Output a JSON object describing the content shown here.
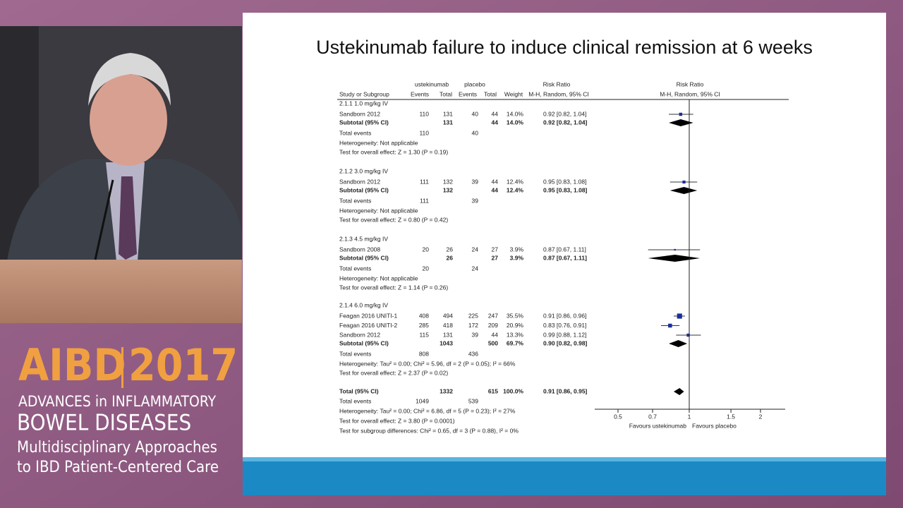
{
  "slide": {
    "title": "Ustekinumab failure to induce clinical remission at 6 weeks",
    "headers": {
      "group1": "ustekinumab",
      "group2": "placebo",
      "rr1": "Risk Ratio",
      "study": "Study or Subgroup",
      "events1": "Events",
      "total1": "Total",
      "events2": "Events",
      "total2": "Total",
      "weight": "Weight",
      "method1": "M-H, Random, 95% CI",
      "rr2": "Risk Ratio",
      "method2": "M-H, Random, 95% CI"
    },
    "groups": [
      {
        "label": "2.1.1 1.0 mg/kg IV",
        "studies": [
          {
            "name": "Sandborn 2012",
            "e1": 110,
            "n1": 131,
            "e2": 40,
            "n2": 44,
            "weight": 14.0,
            "weight_label": "14.0%",
            "rr": 0.92,
            "lo": 0.82,
            "hi": 1.04,
            "ci_label": "0.92 [0.82, 1.04]"
          }
        ],
        "subtotal": {
          "name": "Subtotal (95% CI)",
          "n1": 131,
          "n2": 44,
          "weight": 14.0,
          "weight_label": "14.0%",
          "rr": 0.92,
          "lo": 0.82,
          "hi": 1.04,
          "ci_label": "0.92 [0.82, 1.04]"
        },
        "total_events": {
          "label": "Total events",
          "e1": 110,
          "e2": 40
        },
        "heterogeneity": "Heterogeneity: Not applicable",
        "overall": "Test for overall effect: Z = 1.30 (P = 0.19)"
      },
      {
        "label": "2.1.2 3.0 mg/kg IV",
        "studies": [
          {
            "name": "Sandborn 2012",
            "e1": 111,
            "n1": 132,
            "e2": 39,
            "n2": 44,
            "weight": 12.4,
            "weight_label": "12.4%",
            "rr": 0.95,
            "lo": 0.83,
            "hi": 1.08,
            "ci_label": "0.95 [0.83, 1.08]"
          }
        ],
        "subtotal": {
          "name": "Subtotal (95% CI)",
          "n1": 132,
          "n2": 44,
          "weight": 12.4,
          "weight_label": "12.4%",
          "rr": 0.95,
          "lo": 0.83,
          "hi": 1.08,
          "ci_label": "0.95 [0.83, 1.08]"
        },
        "total_events": {
          "label": "Total events",
          "e1": 111,
          "e2": 39
        },
        "heterogeneity": "Heterogeneity: Not applicable",
        "overall": "Test for overall effect: Z = 0.80 (P = 0.42)"
      },
      {
        "label": "2.1.3 4.5 mg/kg IV",
        "studies": [
          {
            "name": "Sandborn 2008",
            "e1": 20,
            "n1": 26,
            "e2": 24,
            "n2": 27,
            "weight": 3.9,
            "weight_label": "3.9%",
            "rr": 0.87,
            "lo": 0.67,
            "hi": 1.11,
            "ci_label": "0.87 [0.67, 1.11]"
          }
        ],
        "subtotal": {
          "name": "Subtotal (95% CI)",
          "n1": 26,
          "n2": 27,
          "weight": 3.9,
          "weight_label": "3.9%",
          "rr": 0.87,
          "lo": 0.67,
          "hi": 1.11,
          "ci_label": "0.87 [0.67, 1.11]"
        },
        "total_events": {
          "label": "Total events",
          "e1": 20,
          "e2": 24
        },
        "heterogeneity": "Heterogeneity: Not applicable",
        "overall": "Test for overall effect: Z = 1.14 (P = 0.26)"
      },
      {
        "label": "2.1.4 6.0 mg/kg IV",
        "studies": [
          {
            "name": "Feagan 2016 UNITI-1",
            "e1": 408,
            "n1": 494,
            "e2": 225,
            "n2": 247,
            "weight": 35.5,
            "weight_label": "35.5%",
            "rr": 0.91,
            "lo": 0.86,
            "hi": 0.96,
            "ci_label": "0.91 [0.86, 0.96]"
          },
          {
            "name": "Feagan 2016 UNITI-2",
            "e1": 285,
            "n1": 418,
            "e2": 172,
            "n2": 209,
            "weight": 20.9,
            "weight_label": "20.9%",
            "rr": 0.83,
            "lo": 0.76,
            "hi": 0.91,
            "ci_label": "0.83 [0.76, 0.91]"
          },
          {
            "name": "Sandborn 2012",
            "e1": 115,
            "n1": 131,
            "e2": 39,
            "n2": 44,
            "weight": 13.3,
            "weight_label": "13.3%",
            "rr": 0.99,
            "lo": 0.88,
            "hi": 1.12,
            "ci_label": "0.99 [0.88, 1.12]"
          }
        ],
        "subtotal": {
          "name": "Subtotal (95% CI)",
          "n1": 1043,
          "n2": 500,
          "weight": 69.7,
          "weight_label": "69.7%",
          "rr": 0.9,
          "lo": 0.82,
          "hi": 0.98,
          "ci_label": "0.90 [0.82, 0.98]"
        },
        "total_events": {
          "label": "Total events",
          "e1": 808,
          "e2": 436
        },
        "heterogeneity": "Heterogeneity: Tau² = 0.00; Chi² = 5.96, df = 2 (P = 0.05); I² = 66%",
        "overall": "Test for overall effect: Z = 2.37 (P = 0.02)"
      }
    ],
    "total": {
      "name": "Total (95% CI)",
      "n1": 1332,
      "n2": 615,
      "weight": 100.0,
      "weight_label": "100.0%",
      "rr": 0.91,
      "lo": 0.86,
      "hi": 0.95,
      "ci_label": "0.91 [0.86, 0.95]"
    },
    "total_events": {
      "label": "Total events",
      "e1": 1049,
      "e2": 539
    },
    "heterogeneity": "Heterogeneity: Tau² = 0.00; Chi² = 6.86, df = 5 (P = 0.23); I² = 27%",
    "overall": "Test for overall effect: Z = 3.80 (P = 0.0001)",
    "subgroup": "Test for subgroup differences: Chi² = 0.65, df = 3 (P = 0.88), I² = 0%",
    "axis": {
      "scale": "log",
      "xlim": [
        0.5,
        2
      ],
      "xticks": [
        0.5,
        0.7,
        1,
        1.5,
        2
      ],
      "null_value": 1,
      "left_label": "Favours ustekinumab",
      "right_label": "Favours placebo"
    }
  },
  "logo": {
    "name": "AIBD",
    "year": "2017",
    "line1": "ADVANCES in INFLAMMATORY",
    "line2": "BOWEL DISEASES",
    "line3": "Multidisciplinary Approaches",
    "line4": "to IBD Patient-Centered Care"
  }
}
